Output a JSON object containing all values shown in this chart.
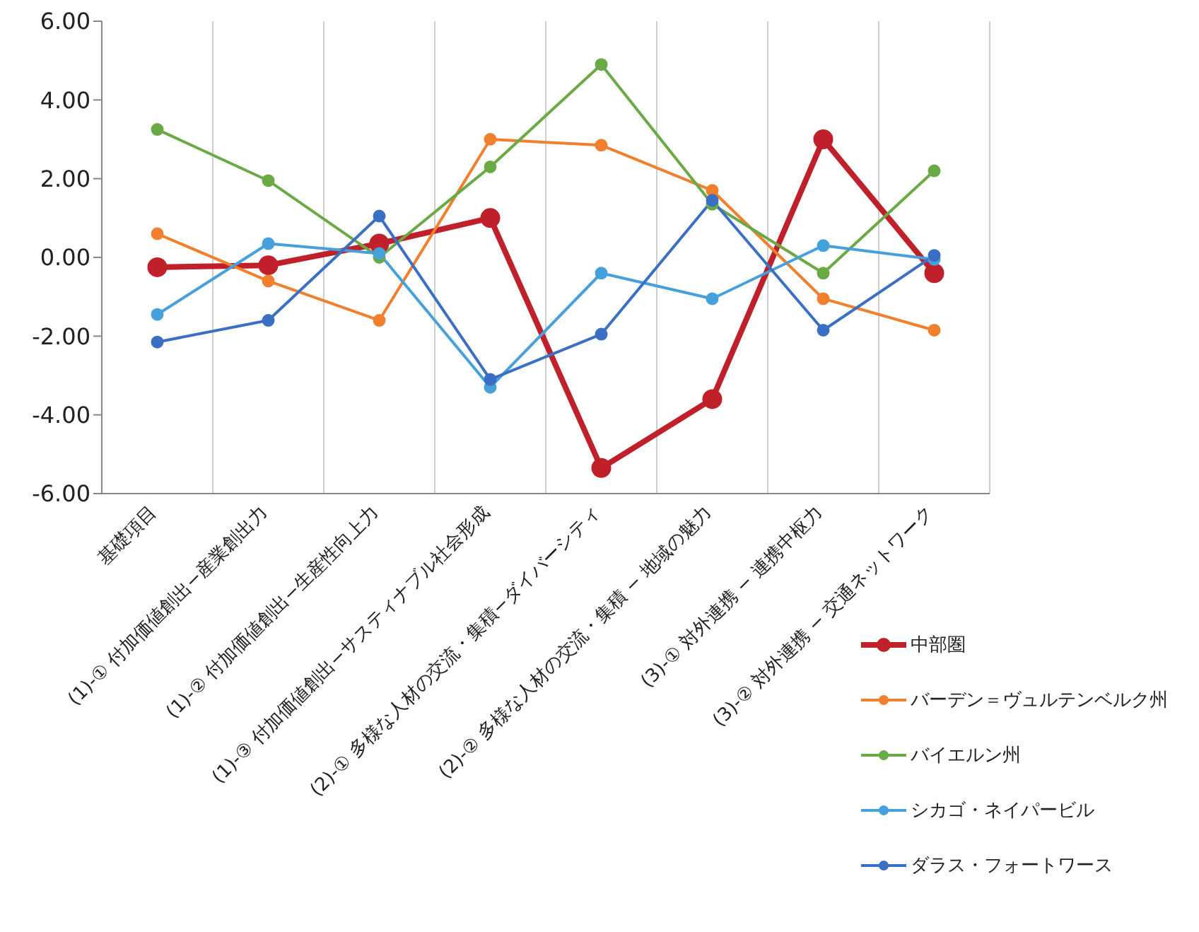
{
  "chart_data": {
    "type": "line",
    "categories": [
      "基礎項目",
      "(1)-① 付加価値創出−産業創出力",
      "(1)-② 付加価値創出−生産性向上力",
      "(1)-③ 付加価値創出−サスティナブル社会形成",
      "(2)-① 多様な人材の交流・集積−ダイバーシティ",
      "(2)-② 多様な人材の交流・集積 − 地域の魅力",
      "(3)-① 対外連携 − 連携中枢力",
      "(3)-② 対外連携 − 交通ネットワーク"
    ],
    "series": [
      {
        "name": "中部圏",
        "color": "#c0202a",
        "values": [
          -0.25,
          -0.2,
          0.35,
          1.0,
          -5.35,
          -3.6,
          3.0,
          -0.4
        ]
      },
      {
        "name": "バーデン＝ヴュルテンベルク州",
        "color": "#f07f2e",
        "values": [
          0.6,
          -0.6,
          -1.6,
          3.0,
          2.85,
          1.7,
          -1.05,
          -1.85
        ]
      },
      {
        "name": "バイエルン州",
        "color": "#6aaa44",
        "values": [
          3.25,
          1.95,
          0.0,
          2.3,
          4.9,
          1.35,
          -0.4,
          2.2
        ]
      },
      {
        "name": "シカゴ・ネイパービル",
        "color": "#45a0dc",
        "values": [
          -1.45,
          0.35,
          0.1,
          -3.3,
          -0.4,
          -1.05,
          0.3,
          -0.05
        ]
      },
      {
        "name": "ダラス・フォートワース",
        "color": "#3a6fc4",
        "values": [
          -2.15,
          -1.6,
          1.05,
          -3.1,
          -1.95,
          1.45,
          -1.85,
          0.05
        ]
      }
    ],
    "ylim": [
      -6,
      6
    ],
    "yticks": [
      {
        "value": -6,
        "label": "-6.00"
      },
      {
        "value": -4,
        "label": "-4.00"
      },
      {
        "value": -2,
        "label": "-2.00"
      },
      {
        "value": 0,
        "label": "0.00"
      },
      {
        "value": 2,
        "label": "2.00"
      },
      {
        "value": 4,
        "label": "4.00"
      },
      {
        "value": 6,
        "label": "6.00"
      }
    ],
    "grid": "x",
    "legend": "bottom right",
    "marker": "circle",
    "line_style": "solid"
  }
}
